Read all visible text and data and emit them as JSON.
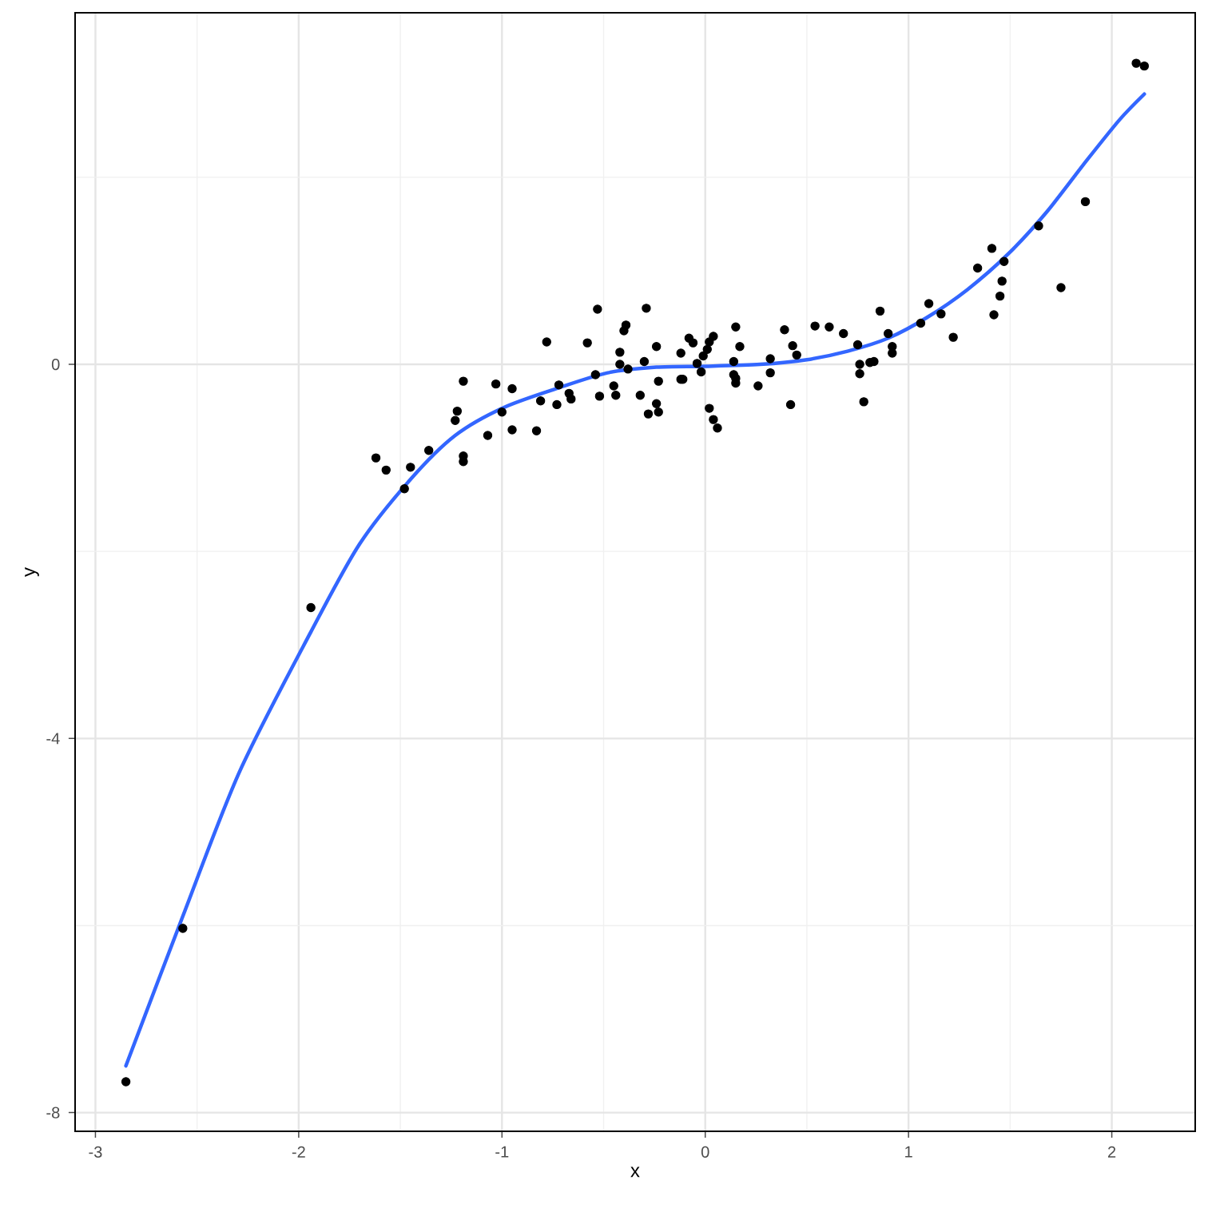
{
  "chart_data": {
    "type": "scatter",
    "xlabel": "x",
    "ylabel": "y",
    "xlim": [
      -3.1,
      2.41
    ],
    "ylim": [
      -8.2,
      3.76
    ],
    "xticks": [
      -3,
      -2,
      -1,
      0,
      1,
      2
    ],
    "yticks": [
      -8,
      -4,
      0
    ],
    "grid": true,
    "series": [
      {
        "color": "#000000",
        "marker": "circle",
        "x": [
          -2.85,
          -2.57,
          -1.94,
          -1.62,
          -1.57,
          -1.45,
          -1.48,
          -1.36,
          -1.23,
          -1.22,
          -1.19,
          -1.19,
          -1.19,
          -1.07,
          -1.03,
          -1.0,
          -0.95,
          -0.95,
          -0.83,
          -0.81,
          -0.78,
          -0.73,
          -0.72,
          -0.67,
          -0.66,
          -0.58,
          -0.54,
          -0.53,
          -0.52,
          -0.45,
          -0.44,
          -0.42,
          -0.42,
          -0.4,
          -0.39,
          -0.38,
          -0.32,
          -0.3,
          -0.29,
          -0.28,
          -0.24,
          -0.24,
          -0.23,
          -0.23,
          -0.12,
          -0.12,
          -0.11,
          -0.08,
          -0.06,
          -0.04,
          -0.02,
          -0.01,
          0.01,
          0.02,
          0.04,
          0.02,
          0.04,
          0.06,
          0.14,
          0.14,
          0.15,
          0.15,
          0.15,
          0.17,
          0.26,
          0.32,
          0.32,
          0.39,
          0.42,
          0.43,
          0.45,
          0.54,
          0.61,
          0.68,
          0.75,
          0.76,
          0.76,
          0.78,
          0.81,
          0.83,
          0.86,
          0.9,
          0.92,
          0.92,
          1.06,
          1.1,
          1.16,
          1.22,
          1.34,
          1.41,
          1.42,
          1.45,
          1.46,
          1.47,
          1.64,
          1.75,
          1.87,
          2.12,
          2.16
        ],
        "values": [
          -7.67,
          -6.03,
          -2.6,
          -1.0,
          -1.13,
          -1.1,
          -1.33,
          -0.92,
          -0.6,
          -0.5,
          -0.18,
          -0.98,
          -1.04,
          -0.76,
          -0.21,
          -0.51,
          -0.26,
          -0.7,
          -0.71,
          -0.39,
          0.24,
          -0.43,
          -0.22,
          -0.31,
          -0.37,
          0.23,
          -0.11,
          0.59,
          -0.34,
          -0.23,
          -0.33,
          0.13,
          0.0,
          0.36,
          0.42,
          -0.05,
          -0.33,
          0.03,
          0.6,
          -0.53,
          0.19,
          -0.42,
          -0.51,
          -0.18,
          -0.16,
          0.12,
          -0.16,
          0.28,
          0.23,
          0.01,
          -0.08,
          0.09,
          0.16,
          0.24,
          0.3,
          -0.47,
          -0.59,
          -0.68,
          -0.11,
          0.03,
          -0.15,
          -0.2,
          0.4,
          0.19,
          -0.23,
          0.06,
          -0.09,
          0.37,
          -0.43,
          0.2,
          0.1,
          0.41,
          0.4,
          0.33,
          0.21,
          0.0,
          -0.1,
          -0.4,
          0.02,
          0.03,
          0.57,
          0.33,
          0.19,
          0.12,
          0.44,
          0.65,
          0.54,
          0.29,
          1.03,
          1.24,
          0.53,
          0.73,
          0.89,
          1.1,
          1.48,
          0.82,
          1.74,
          3.22,
          3.19
        ]
      },
      {
        "type": "line",
        "color": "#3366ff",
        "marker": "none",
        "x": [
          -2.85,
          -2.57,
          -2.29,
          -1.94,
          -1.7,
          -1.45,
          -1.23,
          -0.99,
          -0.72,
          -0.48,
          -0.24,
          0.0,
          0.27,
          0.5,
          0.7,
          0.9,
          1.09,
          1.29,
          1.49,
          1.68,
          1.88,
          2.04,
          2.16
        ],
        "values": [
          -7.5,
          -5.9,
          -4.35,
          -2.86,
          -1.92,
          -1.23,
          -0.76,
          -0.46,
          -0.25,
          -0.09,
          -0.03,
          -0.02,
          0.0,
          0.05,
          0.14,
          0.28,
          0.5,
          0.8,
          1.18,
          1.63,
          2.19,
          2.62,
          2.89
        ]
      }
    ]
  }
}
